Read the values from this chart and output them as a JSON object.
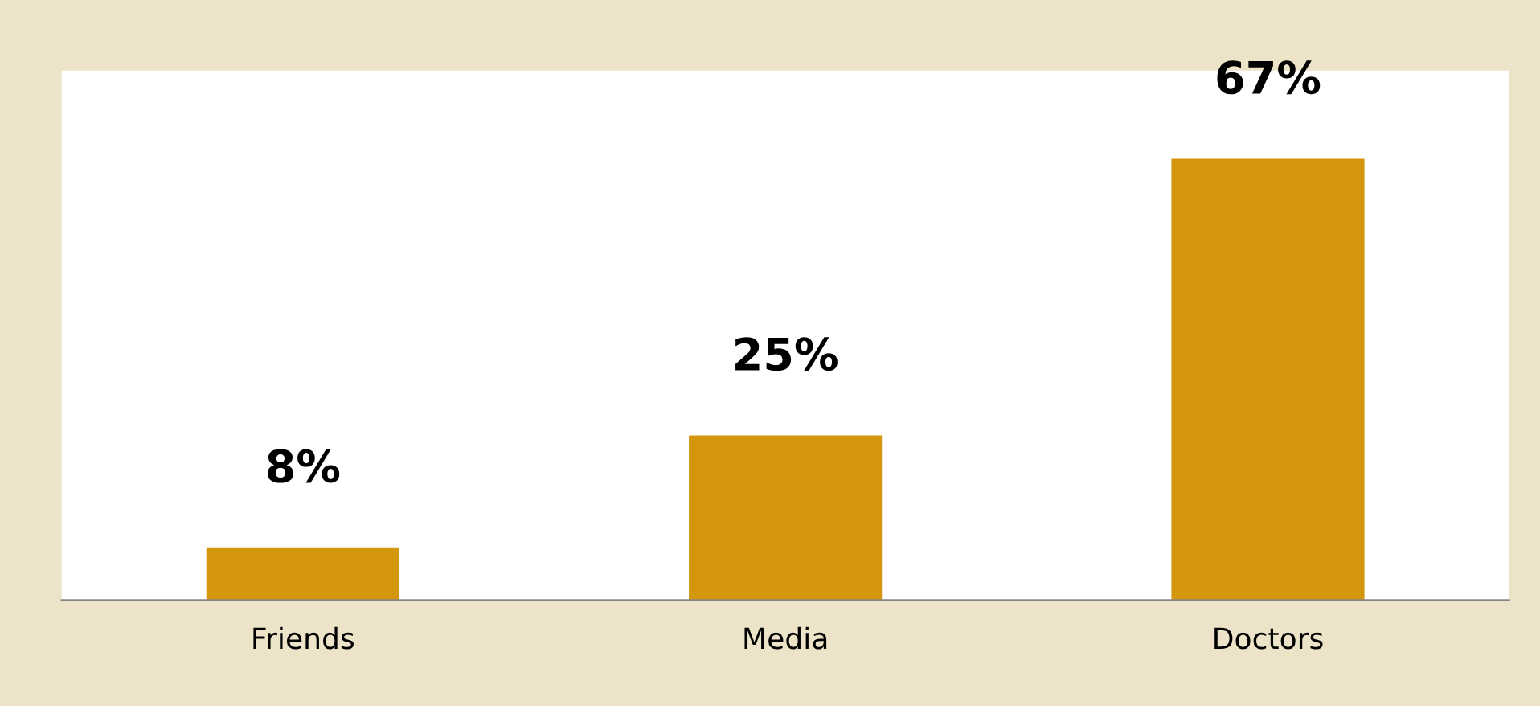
{
  "chart_data": {
    "type": "bar",
    "categories": [
      "Friends",
      "Media",
      "Doctors"
    ],
    "values": [
      8,
      25,
      67
    ],
    "value_labels": [
      "8%",
      "25%",
      "67%"
    ],
    "color": "#d4960c"
  }
}
